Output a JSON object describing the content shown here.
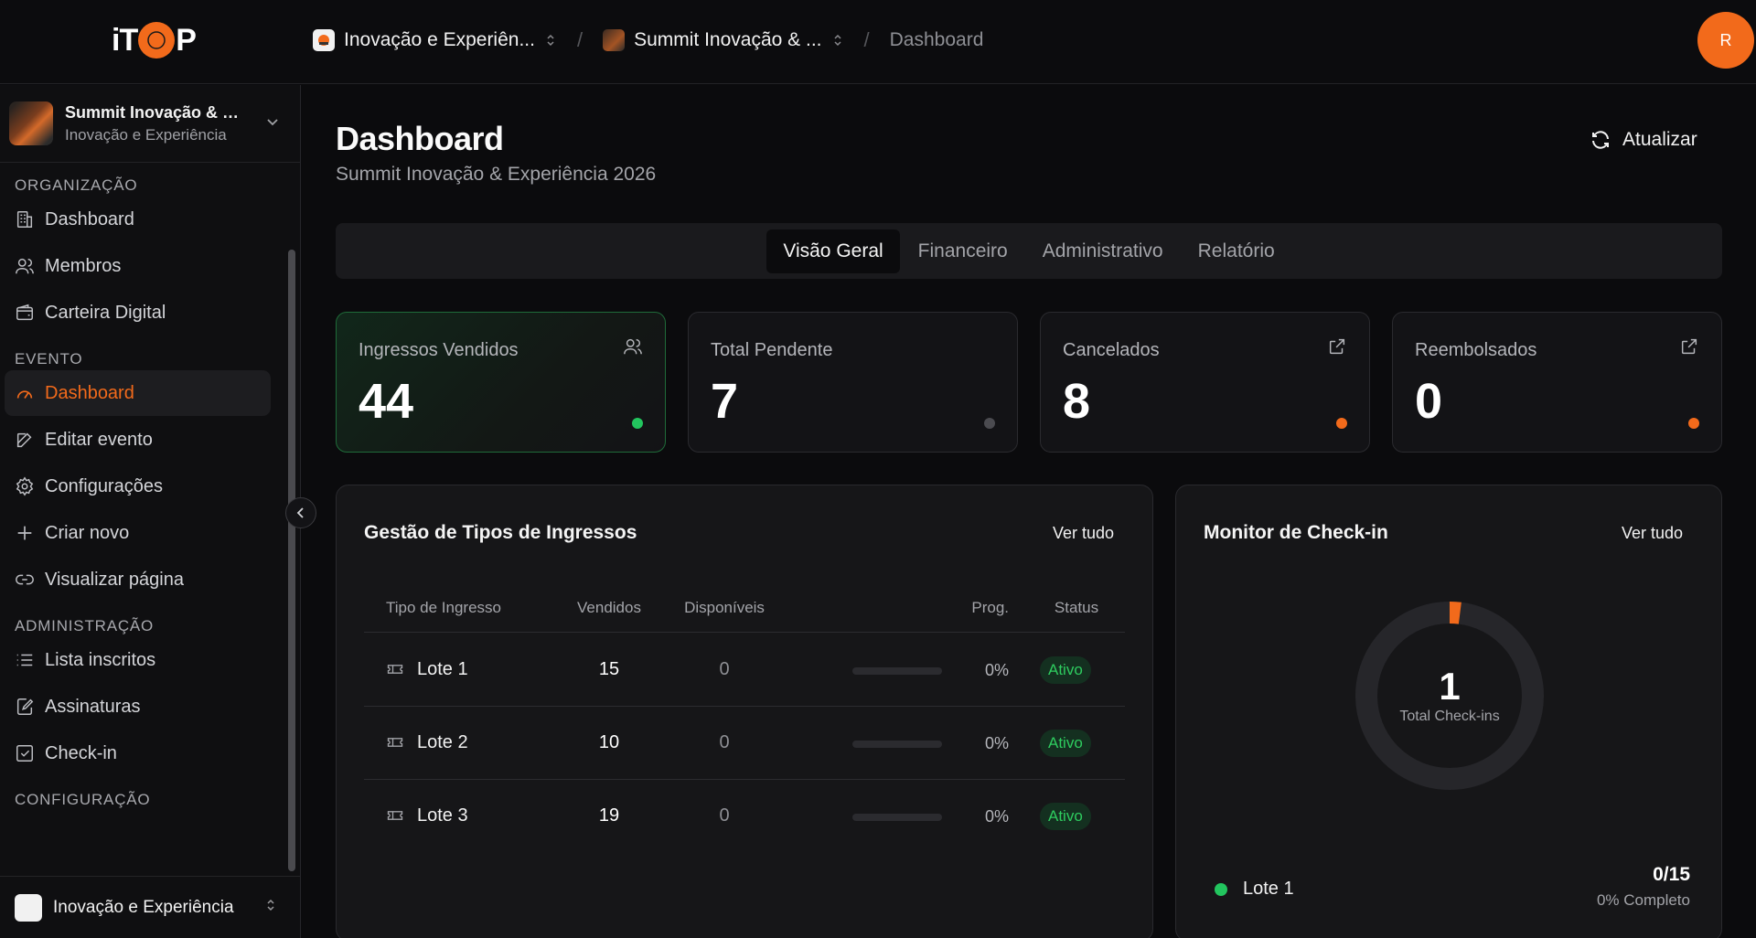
{
  "topbar": {
    "logo_text": "iTOP",
    "breadcrumbs": [
      {
        "label": "Inovação e Experiên..."
      },
      {
        "label": "Summit Inovação & ..."
      },
      {
        "label": "Dashboard"
      }
    ],
    "avatar_initial": "R"
  },
  "sidebar": {
    "event_card": {
      "title": "Summit Inovação & Ex...",
      "subtitle": "Inovação e Experiência"
    },
    "sections": [
      {
        "title": "ORGANIZAÇÃO",
        "items": [
          {
            "label": "Dashboard",
            "icon": "building-icon"
          },
          {
            "label": "Membros",
            "icon": "users-icon"
          },
          {
            "label": "Carteira Digital",
            "icon": "wallet-icon"
          }
        ]
      },
      {
        "title": "EVENTO",
        "items": [
          {
            "label": "Dashboard",
            "icon": "gauge-icon",
            "active": true
          },
          {
            "label": "Editar evento",
            "icon": "edit-icon"
          },
          {
            "label": "Configurações",
            "icon": "gear-icon"
          },
          {
            "label": "Criar novo",
            "icon": "plus-icon"
          },
          {
            "label": "Visualizar página",
            "icon": "link-icon"
          }
        ]
      },
      {
        "title": "ADMINISTRAÇÃO",
        "items": [
          {
            "label": "Lista inscritos",
            "icon": "list-icon"
          },
          {
            "label": "Assinaturas",
            "icon": "signature-icon"
          },
          {
            "label": "Check-in",
            "icon": "check-square-icon"
          }
        ]
      },
      {
        "title": "CONFIGURAÇÃO",
        "items": []
      }
    ],
    "org_switcher": {
      "label": "Inovação e Experiência"
    }
  },
  "main": {
    "title": "Dashboard",
    "subtitle": "Summit Inovação & Experiência 2026",
    "refresh_label": "Atualizar",
    "tabs": [
      "Visão Geral",
      "Financeiro",
      "Administrativo",
      "Relatório"
    ],
    "active_tab": "Visão Geral",
    "stats": [
      {
        "label": "Ingressos Vendidos",
        "value": "44",
        "icon": "users-icon",
        "dot_color": "#22c55e"
      },
      {
        "label": "Total Pendente",
        "value": "7",
        "icon": "",
        "dot_color": "#4b4b50"
      },
      {
        "label": "Cancelados",
        "value": "8",
        "icon": "external-link-icon",
        "dot_color": "#f26a1b"
      },
      {
        "label": "Reembolsados",
        "value": "0",
        "icon": "external-link-icon",
        "dot_color": "#f26a1b"
      }
    ],
    "tickets": {
      "title": "Gestão de Tipos de Ingressos",
      "view_all": "Ver tudo",
      "columns": [
        "Tipo de Ingresso",
        "Vendidos",
        "Disponíveis",
        "Prog.",
        "Status"
      ],
      "rows": [
        {
          "name": "Lote 1",
          "sold": "15",
          "available": "0",
          "progress": 0,
          "progress_label": "0%",
          "status": "Ativo"
        },
        {
          "name": "Lote 2",
          "sold": "10",
          "available": "0",
          "progress": 0,
          "progress_label": "0%",
          "status": "Ativo"
        },
        {
          "name": "Lote 3",
          "sold": "19",
          "available": "0",
          "progress": 0,
          "progress_label": "0%",
          "status": "Ativo"
        }
      ]
    },
    "checkin": {
      "title": "Monitor de Check-in",
      "view_all": "Ver tudo",
      "total": "1",
      "total_label": "Total Check-ins",
      "ring_fraction": 0.02,
      "rows": [
        {
          "name": "Lote 1",
          "count": "0/15",
          "percent_label": "0% Completo"
        }
      ]
    }
  },
  "colors": {
    "accent": "#f26a1b",
    "success": "#22c55e",
    "background": "#0b0b0d"
  }
}
